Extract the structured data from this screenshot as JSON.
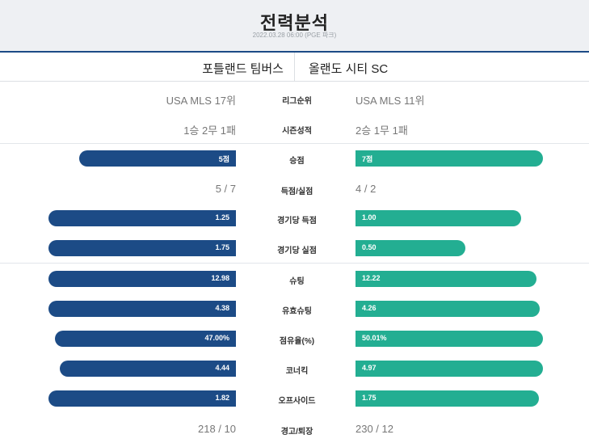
{
  "header": {
    "title": "전력분석",
    "meta": "2022.03.28 06:00 (PGE 파크)"
  },
  "teams": {
    "home": "포틀랜드 팀버스",
    "away": "올랜도 시티 SC"
  },
  "colors": {
    "home": "#1c4b86",
    "away": "#23ae92",
    "header_bg": "#eef0f3"
  },
  "rows": {
    "league_rank": {
      "label": "리그순위",
      "home": "USA MLS 17위",
      "away": "USA MLS 11위"
    },
    "season_record": {
      "label": "시즌성적",
      "home": "1승 2무 1패",
      "away": "2승 1무 1패"
    },
    "points": {
      "label": "승점",
      "home": "5점",
      "away": "7점",
      "home_value": 5,
      "away_value": 7
    },
    "goals": {
      "label": "득점/실점",
      "home": "5 / 7",
      "away": "4 / 2"
    },
    "goals_per_game": {
      "label": "경기당 득점",
      "home": "1.25",
      "away": "1.00",
      "home_value": 1.25,
      "away_value": 1.0
    },
    "conceded_per_game": {
      "label": "경기당 실점",
      "home": "1.75",
      "away": "0.50",
      "home_value": 1.75,
      "away_value": 0.5
    },
    "shots": {
      "label": "슈팅",
      "home": "12.98",
      "away": "12.22",
      "home_value": 12.98,
      "away_value": 12.22
    },
    "shots_on_target": {
      "label": "유효슈팅",
      "home": "4.38",
      "away": "4.26",
      "home_value": 4.38,
      "away_value": 4.26
    },
    "possession": {
      "label": "점유율(%)",
      "home": "47.00%",
      "away": "50.01%",
      "home_value": 47.0,
      "away_value": 50.01
    },
    "corners": {
      "label": "코너킥",
      "home": "4.44",
      "away": "4.97",
      "home_value": 4.44,
      "away_value": 4.97
    },
    "offsides": {
      "label": "오프사이드",
      "home": "1.82",
      "away": "1.75",
      "home_value": 1.82,
      "away_value": 1.75
    },
    "cards": {
      "label": "경고/퇴장",
      "home": "218 / 10",
      "away": "230 / 12"
    }
  }
}
